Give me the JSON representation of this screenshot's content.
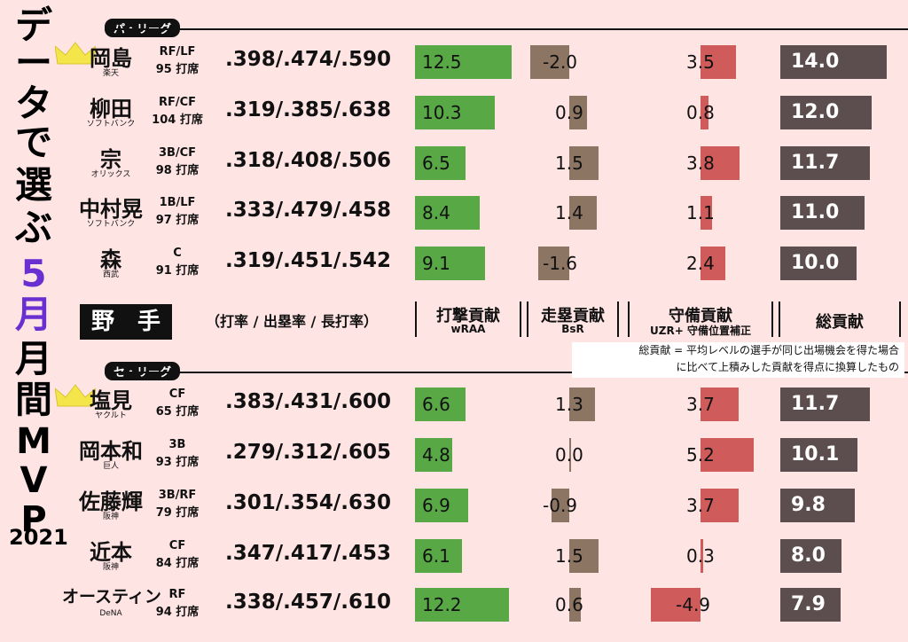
{
  "title_chars": [
    "デ",
    "ー",
    "タ",
    "で",
    "選",
    "ぶ",
    "5",
    "月",
    "月",
    "間",
    "M",
    "V",
    "P"
  ],
  "year": "2021",
  "leagues": {
    "pa": "パ・リーグ",
    "se": "セ・リーグ"
  },
  "header": {
    "fielders": "野　手",
    "slash_label": "（打率 / 出塁率 / 長打率）",
    "batting": "打撃貢献",
    "batting_sub": "wRAA",
    "running": "走塁貢献",
    "running_sub": "BsR",
    "defense": "守備貢献",
    "defense_sub": "UZR+ 守備位置補正",
    "total": "総貢献"
  },
  "note_line1": "総貢献 = 平均レベルの選手が同じ出場機会を得た場合",
  "note_line2": "に比べて上積みした貢献を得点に換算したもの",
  "colors": {
    "batting": "#58a846",
    "running": "#8c7563",
    "defense": "#cf5b5b",
    "total": "#5c4d4e",
    "accent": "#6a2fd0",
    "crown": "#f4e64a"
  },
  "chart_data": {
    "type": "bar",
    "series": [
      "打撃貢献",
      "走塁貢献",
      "守備貢献",
      "総貢献"
    ],
    "pa_players": [
      {
        "name": "岡島",
        "team": "楽天",
        "pos": "RF/LF",
        "pa": "95 打席",
        "slash": ".398/.474/.590",
        "bat": 12.5,
        "run": -2.0,
        "def": 3.5,
        "total": 14.0,
        "crown": true
      },
      {
        "name": "柳田",
        "team": "ソフトバンク",
        "pos": "RF/CF",
        "pa": "104 打席",
        "slash": ".319/.385/.638",
        "bat": 10.3,
        "run": 0.9,
        "def": 0.8,
        "total": 12.0,
        "crown": false
      },
      {
        "name": "宗",
        "team": "オリックス",
        "pos": "3B/CF",
        "pa": "98 打席",
        "slash": ".318/.408/.506",
        "bat": 6.5,
        "run": 1.5,
        "def": 3.8,
        "total": 11.7,
        "crown": false
      },
      {
        "name": "中村晃",
        "team": "ソフトバンク",
        "pos": "1B/LF",
        "pa": "97 打席",
        "slash": ".333/.479/.458",
        "bat": 8.4,
        "run": 1.4,
        "def": 1.1,
        "total": 11.0,
        "crown": false
      },
      {
        "name": "森",
        "team": "西武",
        "pos": "C",
        "pa": "91 打席",
        "slash": ".319/.451/.542",
        "bat": 9.1,
        "run": -1.6,
        "def": 2.4,
        "total": 10.0,
        "crown": false
      }
    ],
    "se_players": [
      {
        "name": "塩見",
        "team": "ヤクルト",
        "pos": "CF",
        "pa": "65 打席",
        "slash": ".383/.431/.600",
        "bat": 6.6,
        "run": 1.3,
        "def": 3.7,
        "total": 11.7,
        "crown": true
      },
      {
        "name": "岡本和",
        "team": "巨人",
        "pos": "3B",
        "pa": "93 打席",
        "slash": ".279/.312/.605",
        "bat": 4.8,
        "run": 0.0,
        "def": 5.2,
        "total": 10.1,
        "crown": false
      },
      {
        "name": "佐藤輝",
        "team": "阪神",
        "pos": "3B/RF",
        "pa": "79 打席",
        "slash": ".301/.354/.630",
        "bat": 6.9,
        "run": -0.9,
        "def": 3.7,
        "total": 9.8,
        "crown": false
      },
      {
        "name": "近本",
        "team": "阪神",
        "pos": "CF",
        "pa": "84 打席",
        "slash": ".347/.417/.453",
        "bat": 6.1,
        "run": 1.5,
        "def": 0.3,
        "total": 8.0,
        "crown": false
      },
      {
        "name": "オースティン",
        "team": "DeNA",
        "pos": "RF",
        "pa": "94 打席",
        "slash": ".338/.457/.610",
        "bat": 12.2,
        "run": 0.6,
        "def": -4.9,
        "total": 7.9,
        "crown": false
      }
    ]
  }
}
